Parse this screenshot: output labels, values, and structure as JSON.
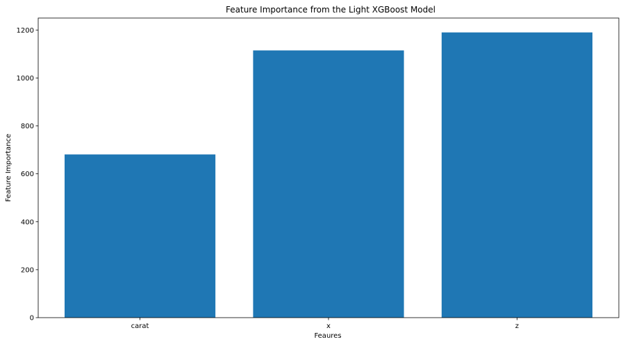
{
  "chart_data": {
    "type": "bar",
    "title": "Feature Importance  from the Light XGBoost Model",
    "xlabel": "Feaures",
    "ylabel": "Feature Importance",
    "categories": [
      "carat",
      "x",
      "z"
    ],
    "values": [
      681,
      1115,
      1190
    ],
    "ylim": [
      0,
      1250
    ],
    "yticks": [
      0,
      200,
      400,
      600,
      800,
      1000,
      1200
    ],
    "grid": false,
    "bar_color": "#1f77b4"
  }
}
